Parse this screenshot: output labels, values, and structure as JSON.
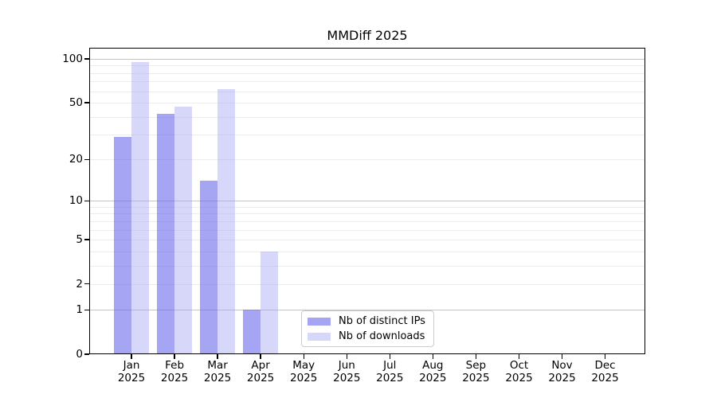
{
  "chart_data": {
    "type": "bar",
    "title": "MMDiff 2025",
    "categories": [
      "Jan",
      "Feb",
      "Mar",
      "Apr",
      "May",
      "Jun",
      "Jul",
      "Aug",
      "Sep",
      "Oct",
      "Nov",
      "Dec"
    ],
    "category_year": "2025",
    "series": [
      {
        "name": "Nb of distinct IPs",
        "color": "rgba(105,105,237,0.6)",
        "color_solid": "#a5a5f4",
        "values": [
          29,
          42,
          14,
          1,
          0,
          0,
          0,
          0,
          0,
          0,
          0,
          0
        ]
      },
      {
        "name": "Nb of downloads",
        "color": "rgba(166,166,244,0.45)",
        "color_solid": "#d7d7fa",
        "values": [
          95,
          47,
          62,
          4,
          0,
          0,
          0,
          0,
          0,
          0,
          0,
          0
        ]
      }
    ],
    "xlabel": "",
    "ylabel": "",
    "y_axis": {
      "scale": "log1p",
      "min": 0,
      "max": 100,
      "tick_labels": [
        0,
        1,
        2,
        5,
        10,
        20,
        50,
        100
      ],
      "major_grid_values": [
        1,
        10,
        100
      ],
      "minor_grid_values": [
        2,
        3,
        4,
        5,
        6,
        7,
        8,
        9,
        20,
        30,
        40,
        50,
        60,
        70,
        80,
        90
      ]
    },
    "legend": {
      "position": "bottom-center",
      "entries": [
        "Nb of distinct IPs",
        "Nb of downloads"
      ]
    },
    "grid": "horizontal",
    "colors": {
      "background": "#ffffff",
      "frame": "#000000",
      "text": "#000000",
      "major_grid": "#c4c4c4",
      "minor_grid": "#ececec",
      "legend_border": "#cccccc"
    }
  }
}
